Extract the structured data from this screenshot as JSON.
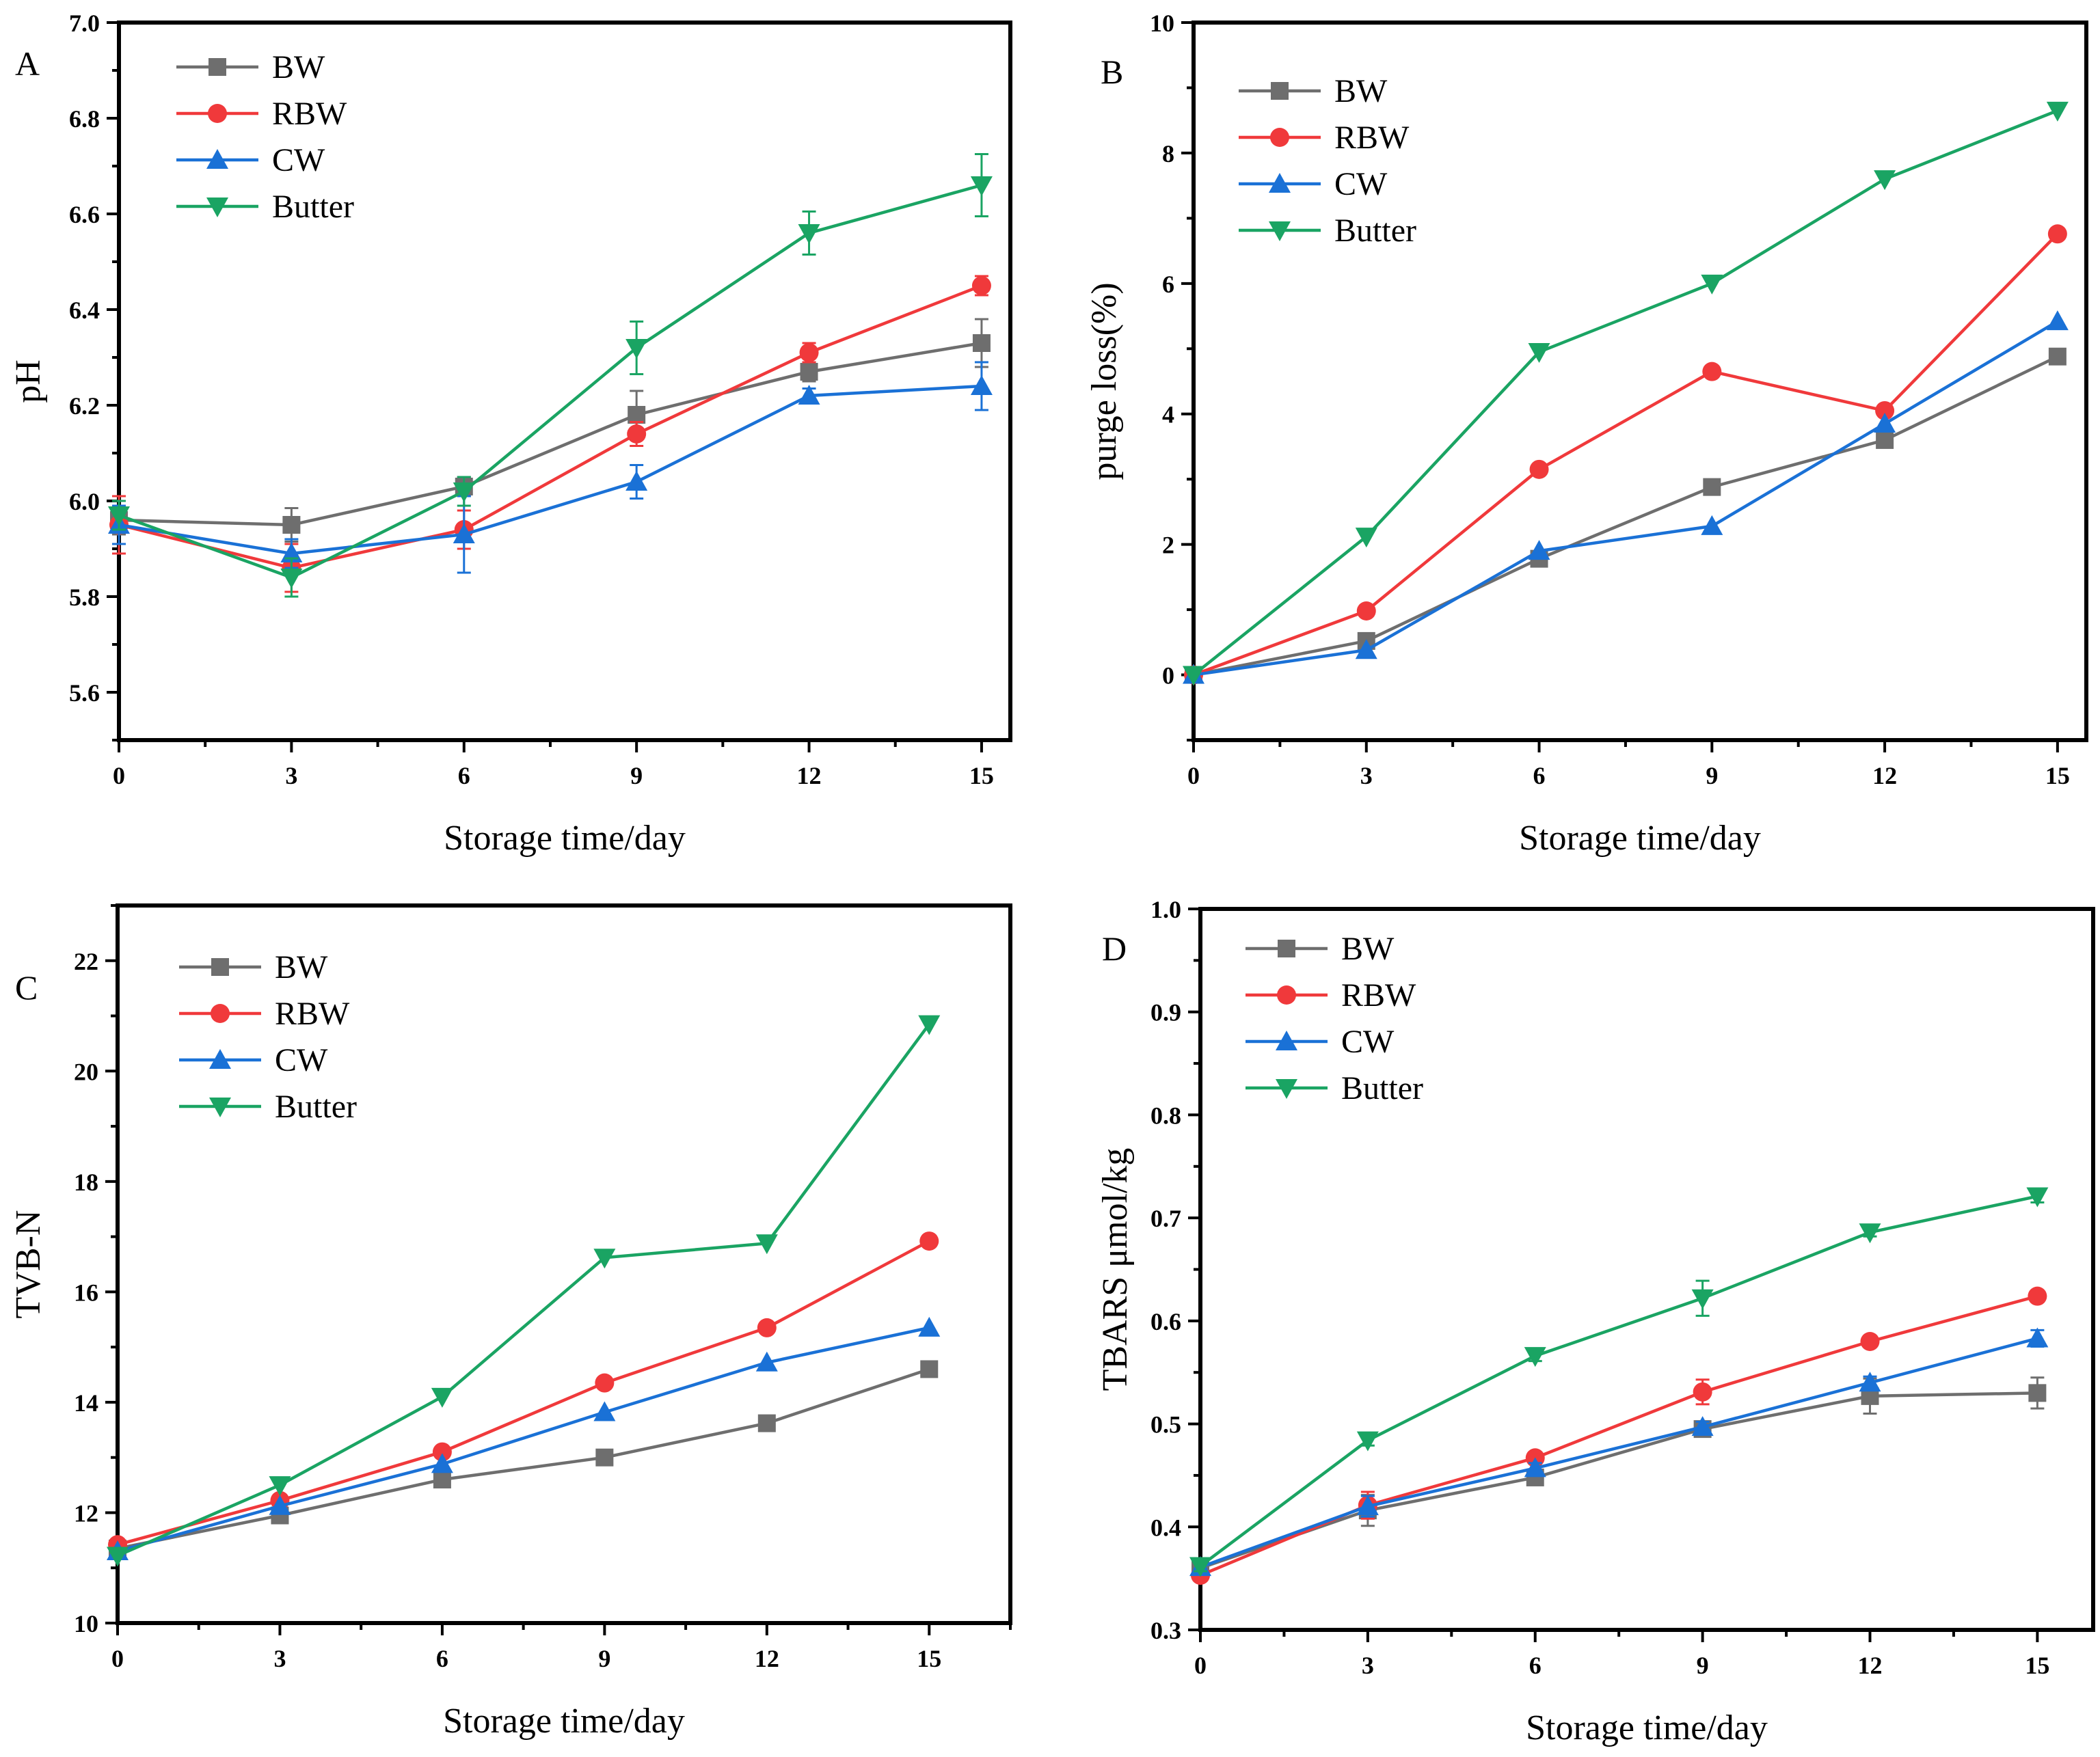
{
  "colors": {
    "BW": "#6e6e6e",
    "RBW": "#f0393b",
    "CW": "#1a71d6",
    "Butter": "#1aa463",
    "frame": "#000000"
  },
  "chart_data": [
    {
      "type": "line",
      "panel_label": "A",
      "title": "",
      "xlabel": "Storage time/day",
      "ylabel": "pH",
      "xlim": [
        0,
        15.5
      ],
      "ylim": [
        5.5,
        7.0
      ],
      "x": [
        0,
        3,
        6,
        9,
        12,
        15
      ],
      "xticks": [
        "0",
        "3",
        "6",
        "9",
        "12",
        "15"
      ],
      "yticks": [
        "5.6",
        "5.8",
        "6.0",
        "6.2",
        "6.4",
        "6.6",
        "6.8",
        "7.0"
      ],
      "legend_position": "top-left",
      "series": [
        {
          "name": "BW",
          "marker": "square",
          "values": [
            5.96,
            5.95,
            6.03,
            6.18,
            6.27,
            6.33
          ],
          "errors": [
            0.03,
            0.035,
            0.02,
            0.05,
            0.02,
            0.05
          ]
        },
        {
          "name": "RBW",
          "marker": "circle",
          "values": [
            5.95,
            5.86,
            5.94,
            6.14,
            6.31,
            6.45
          ],
          "errors": [
            0.06,
            0.05,
            0.04,
            0.025,
            0.02,
            0.02
          ]
        },
        {
          "name": "CW",
          "marker": "triangle-up",
          "values": [
            5.95,
            5.89,
            5.93,
            6.04,
            6.22,
            6.24
          ],
          "errors": [
            0.04,
            0.03,
            0.08,
            0.035,
            0.015,
            0.05
          ]
        },
        {
          "name": "Butter",
          "marker": "triangle-down",
          "values": [
            5.97,
            5.84,
            6.02,
            6.32,
            6.56,
            6.66
          ],
          "errors": [
            0.03,
            0.04,
            0.03,
            0.055,
            0.045,
            0.065
          ]
        }
      ]
    },
    {
      "type": "line",
      "panel_label": "B",
      "title": "",
      "xlabel": "Storage time/day",
      "ylabel": "purge loss(%)",
      "xlim": [
        0,
        15.5
      ],
      "ylim": [
        -1,
        10
      ],
      "x": [
        0,
        3,
        6,
        9,
        12,
        15
      ],
      "xticks": [
        "0",
        "3",
        "6",
        "9",
        "12",
        "15"
      ],
      "yticks": [
        "0",
        "2",
        "4",
        "6",
        "8",
        "10"
      ],
      "legend_position": "top-left",
      "series": [
        {
          "name": "BW",
          "marker": "square",
          "values": [
            0,
            0.52,
            1.78,
            2.88,
            3.6,
            4.88
          ]
        },
        {
          "name": "RBW",
          "marker": "circle",
          "values": [
            0,
            0.98,
            3.15,
            4.65,
            4.05,
            6.76
          ]
        },
        {
          "name": "CW",
          "marker": "triangle-up",
          "values": [
            0,
            0.38,
            1.9,
            2.28,
            3.85,
            5.42
          ]
        },
        {
          "name": "Butter",
          "marker": "triangle-down",
          "values": [
            0,
            2.12,
            4.95,
            6.0,
            7.6,
            8.65
          ]
        }
      ]
    },
    {
      "type": "line",
      "panel_label": "C",
      "title": "",
      "xlabel": "Storage time/day",
      "ylabel": "TVB-N",
      "xlim": [
        0,
        16.5
      ],
      "ylim": [
        10,
        23
      ],
      "x": [
        0,
        3,
        6,
        9,
        12,
        15
      ],
      "xticks": [
        "0",
        "3",
        "6",
        "9",
        "12",
        "15"
      ],
      "yticks": [
        "10",
        "12",
        "14",
        "16",
        "18",
        "20",
        "22"
      ],
      "legend_position": "top-left",
      "series": [
        {
          "name": "BW",
          "marker": "square",
          "values": [
            11.35,
            11.95,
            12.6,
            13.0,
            13.62,
            14.6
          ]
        },
        {
          "name": "RBW",
          "marker": "circle",
          "values": [
            11.42,
            12.22,
            13.1,
            14.35,
            15.35,
            16.92
          ]
        },
        {
          "name": "CW",
          "marker": "triangle-up",
          "values": [
            11.3,
            12.12,
            12.88,
            13.82,
            14.72,
            15.35
          ]
        },
        {
          "name": "Butter",
          "marker": "triangle-down",
          "values": [
            11.22,
            12.5,
            14.1,
            16.62,
            16.88,
            20.85
          ]
        }
      ]
    },
    {
      "type": "line",
      "panel_label": "D",
      "title": "",
      "xlabel": "Storage time/day",
      "ylabel": "TBARS μmol/kg",
      "xlim": [
        0,
        16.0
      ],
      "ylim": [
        0.3,
        1.0
      ],
      "x": [
        0,
        3,
        6,
        9,
        12,
        15
      ],
      "xticks": [
        "0",
        "3",
        "6",
        "9",
        "12",
        "15"
      ],
      "yticks": [
        "0.3",
        "0.4",
        "0.5",
        "0.6",
        "0.7",
        "0.8",
        "0.9",
        "1.0"
      ],
      "legend_position": "top-left",
      "series": [
        {
          "name": "BW",
          "marker": "square",
          "values": [
            0.36,
            0.416,
            0.448,
            0.495,
            0.527,
            0.53
          ],
          "errors": [
            0.005,
            0.015,
            0.005,
            0.005,
            0.017,
            0.015
          ]
        },
        {
          "name": "RBW",
          "marker": "circle",
          "values": [
            0.353,
            0.421,
            0.467,
            0.531,
            0.58,
            0.624
          ],
          "errors": [
            0.005,
            0.013,
            0.005,
            0.012,
            0.004,
            0.005
          ]
        },
        {
          "name": "CW",
          "marker": "triangle-up",
          "values": [
            0.361,
            0.42,
            0.457,
            0.497,
            0.54,
            0.583
          ],
          "errors": [
            0.005,
            0.01,
            0.005,
            0.005,
            0.006,
            0.008
          ]
        },
        {
          "name": "Butter",
          "marker": "triangle-down",
          "values": [
            0.362,
            0.484,
            0.566,
            0.622,
            0.686,
            0.721
          ],
          "errors": [
            0.005,
            0.005,
            0.005,
            0.017,
            0.004,
            0.006
          ]
        }
      ]
    }
  ]
}
